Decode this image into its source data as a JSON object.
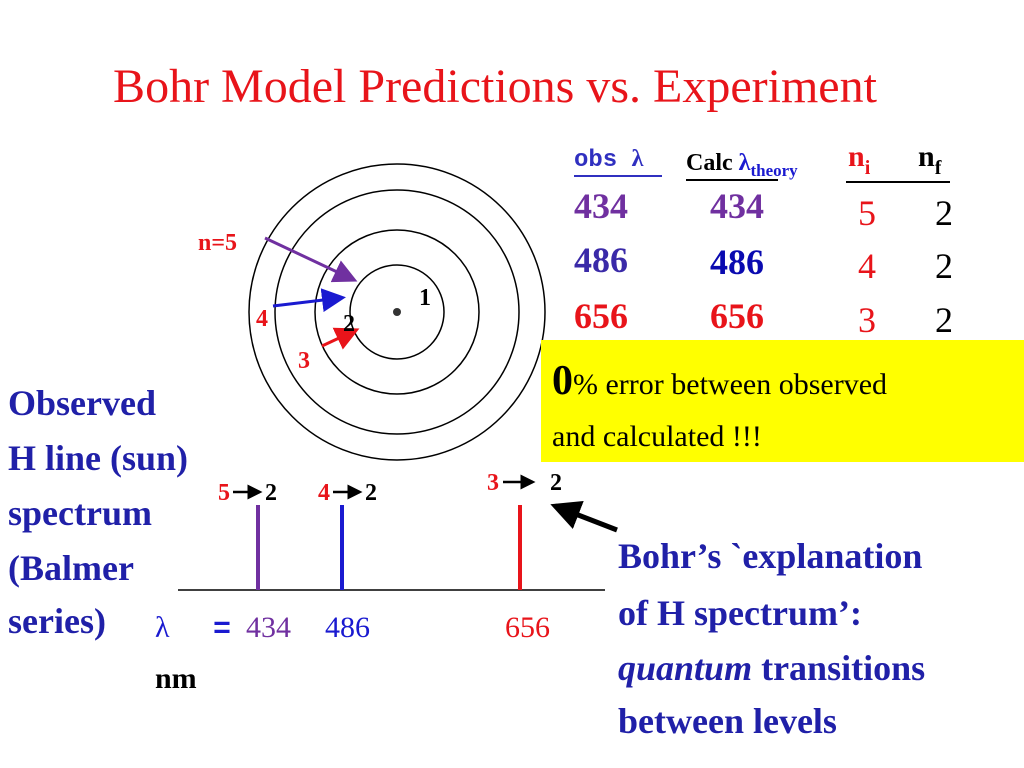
{
  "title": "Bohr Model Predictions vs. Experiment",
  "table": {
    "headers": [
      {
        "text": "obs ",
        "symbol": "λ"
      },
      {
        "text": "Calc ",
        "symbol": "λ",
        "sub": "theory"
      },
      {
        "text": "n",
        "sub": "i"
      },
      {
        "text": "n",
        "sub": "f"
      }
    ],
    "rows": [
      [
        434,
        434,
        5,
        2
      ],
      [
        486,
        486,
        4,
        2
      ],
      [
        656,
        656,
        3,
        2
      ]
    ]
  },
  "atom": {
    "labels": [
      "n=5",
      "4",
      "3",
      "2",
      "1"
    ]
  },
  "note": {
    "big": "0",
    "lines": [
      "% error between observed",
      "and calculated !!!"
    ]
  },
  "observed": [
    "Observed",
    "H line (sun)",
    "spectrum",
    "(Balmer",
    "series)"
  ],
  "spectrum": {
    "transitions": [
      {
        "from": "5",
        "to": "2"
      },
      {
        "from": "4",
        "to": "2"
      },
      {
        "from": "3",
        "to": "2"
      }
    ],
    "symbol": "λ",
    "equals": "=",
    "values": [
      434,
      486,
      656
    ],
    "unit": "nm"
  },
  "explanation": {
    "lines": [
      "Bohr’s `explanation",
      "of H spectrum’:"
    ],
    "italic": "quantum",
    "rest": " transitions",
    "last": "between levels"
  }
}
